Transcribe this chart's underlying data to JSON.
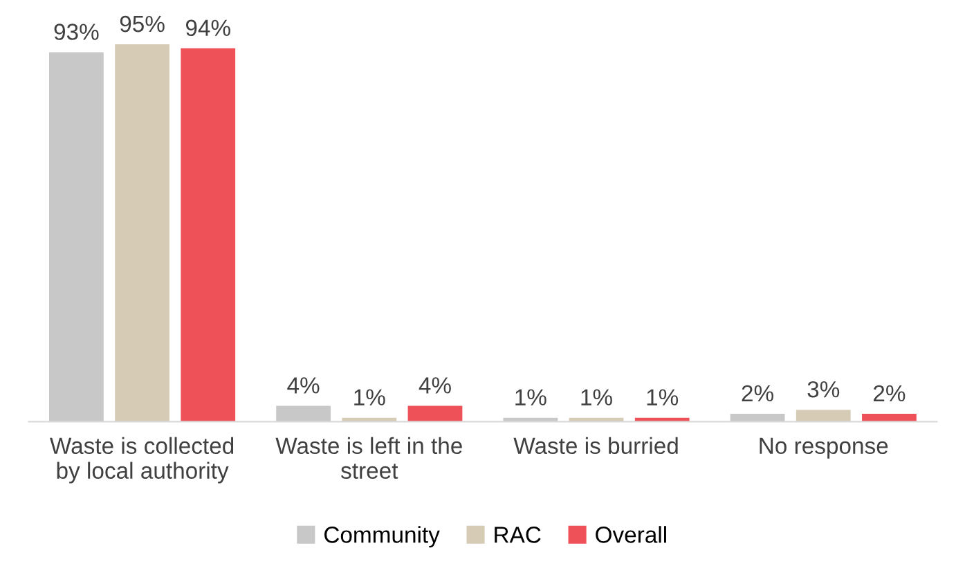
{
  "chart_data": {
    "type": "bar",
    "categories": [
      "Waste is collected\nby local authority",
      "Waste is left in the\nstreet",
      "Waste is burried",
      "No response"
    ],
    "series": [
      {
        "name": "Community",
        "color": "#c8c8c8",
        "values": [
          93,
          4,
          1,
          2
        ],
        "value_labels": [
          "93%",
          "4%",
          "1%",
          "2%"
        ]
      },
      {
        "name": "RAC",
        "color": "#d6ccb6",
        "values": [
          95,
          1,
          1,
          3
        ],
        "value_labels": [
          "95%",
          "1%",
          "1%",
          "3%"
        ]
      },
      {
        "name": "Overall",
        "color": "#ee5258",
        "values": [
          94,
          4,
          1,
          2
        ],
        "value_labels": [
          "94%",
          "4%",
          "1%",
          "2%"
        ]
      }
    ],
    "legend": "bottom"
  }
}
